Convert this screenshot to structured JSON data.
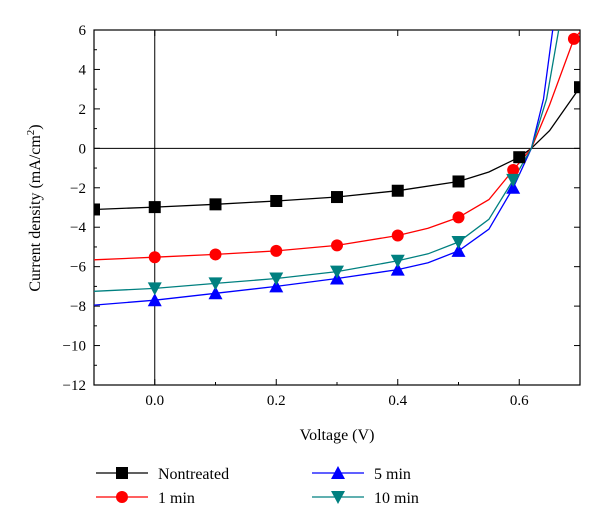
{
  "chart_data": {
    "type": "line",
    "xlabel": "Voltage (V)",
    "ylabel_main": "Current density (mA/cm",
    "ylabel_sup": "2",
    "ylabel_tail": ")",
    "xlim": [
      -0.1,
      0.7
    ],
    "ylim": [
      -12,
      6
    ],
    "xticks": [
      0.0,
      0.2,
      0.4,
      0.6
    ],
    "xtick_labels": [
      "0.0",
      "0.2",
      "0.4",
      "0.6"
    ],
    "yticks": [
      6,
      4,
      2,
      0,
      -2,
      -4,
      -6,
      -8,
      -10,
      -12
    ],
    "ytick_labels": [
      "6",
      "4",
      "2",
      "0",
      "−2",
      "−4",
      "−6",
      "−8",
      "−10",
      "−12"
    ],
    "grid": false,
    "zero_lines": true,
    "legend_position": "bottom",
    "series": [
      {
        "name": "Nontreated",
        "color": "#000000",
        "marker": "square",
        "curve": [
          [
            -0.1,
            -3.1
          ],
          [
            0.0,
            -2.98
          ],
          [
            0.1,
            -2.84
          ],
          [
            0.2,
            -2.67
          ],
          [
            0.3,
            -2.47
          ],
          [
            0.4,
            -2.15
          ],
          [
            0.5,
            -1.68
          ],
          [
            0.55,
            -1.2
          ],
          [
            0.6,
            -0.45
          ],
          [
            0.62,
            0.0
          ],
          [
            0.65,
            0.9
          ],
          [
            0.7,
            3.1
          ]
        ],
        "markers": [
          [
            -0.1,
            -3.1
          ],
          [
            0.0,
            -2.98
          ],
          [
            0.1,
            -2.84
          ],
          [
            0.2,
            -2.67
          ],
          [
            0.3,
            -2.47
          ],
          [
            0.4,
            -2.15
          ],
          [
            0.5,
            -1.68
          ],
          [
            0.6,
            -0.45
          ],
          [
            0.7,
            3.1
          ]
        ]
      },
      {
        "name": "1 min",
        "color": "#ff0000",
        "marker": "circle",
        "curve": [
          [
            -0.1,
            -5.65
          ],
          [
            0.0,
            -5.52
          ],
          [
            0.1,
            -5.38
          ],
          [
            0.2,
            -5.2
          ],
          [
            0.3,
            -4.92
          ],
          [
            0.4,
            -4.42
          ],
          [
            0.45,
            -4.05
          ],
          [
            0.5,
            -3.5
          ],
          [
            0.55,
            -2.6
          ],
          [
            0.59,
            -1.1
          ],
          [
            0.62,
            0.0
          ],
          [
            0.65,
            2.2
          ],
          [
            0.69,
            5.55
          ],
          [
            0.7,
            5.9
          ]
        ],
        "markers": [
          [
            0.0,
            -5.52
          ],
          [
            0.1,
            -5.38
          ],
          [
            0.2,
            -5.2
          ],
          [
            0.3,
            -4.92
          ],
          [
            0.4,
            -4.42
          ],
          [
            0.5,
            -3.5
          ],
          [
            0.59,
            -1.1
          ],
          [
            0.69,
            5.55
          ]
        ]
      },
      {
        "name": "5 min",
        "color": "#0000ff",
        "marker": "triangle-up",
        "curve": [
          [
            -0.1,
            -7.95
          ],
          [
            0.0,
            -7.7
          ],
          [
            0.1,
            -7.35
          ],
          [
            0.2,
            -7.0
          ],
          [
            0.3,
            -6.6
          ],
          [
            0.4,
            -6.15
          ],
          [
            0.45,
            -5.8
          ],
          [
            0.5,
            -5.2
          ],
          [
            0.55,
            -4.1
          ],
          [
            0.59,
            -2.0
          ],
          [
            0.62,
            0.0
          ],
          [
            0.64,
            2.5
          ],
          [
            0.655,
            6.0
          ]
        ],
        "markers": [
          [
            0.0,
            -7.7
          ],
          [
            0.1,
            -7.35
          ],
          [
            0.2,
            -7.0
          ],
          [
            0.3,
            -6.6
          ],
          [
            0.4,
            -6.15
          ],
          [
            0.5,
            -5.2
          ],
          [
            0.59,
            -2.0
          ]
        ]
      },
      {
        "name": "10 min",
        "color": "#008080",
        "marker": "triangle-down",
        "curve": [
          [
            -0.1,
            -7.25
          ],
          [
            0.0,
            -7.1
          ],
          [
            0.1,
            -6.85
          ],
          [
            0.2,
            -6.6
          ],
          [
            0.3,
            -6.25
          ],
          [
            0.4,
            -5.7
          ],
          [
            0.45,
            -5.35
          ],
          [
            0.5,
            -4.75
          ],
          [
            0.55,
            -3.6
          ],
          [
            0.59,
            -1.6
          ],
          [
            0.62,
            0.0
          ],
          [
            0.645,
            2.5
          ],
          [
            0.665,
            6.0
          ]
        ],
        "markers": [
          [
            0.0,
            -7.1
          ],
          [
            0.1,
            -6.85
          ],
          [
            0.2,
            -6.6
          ],
          [
            0.3,
            -6.25
          ],
          [
            0.4,
            -5.7
          ],
          [
            0.5,
            -4.75
          ],
          [
            0.59,
            -1.6
          ]
        ]
      }
    ]
  }
}
